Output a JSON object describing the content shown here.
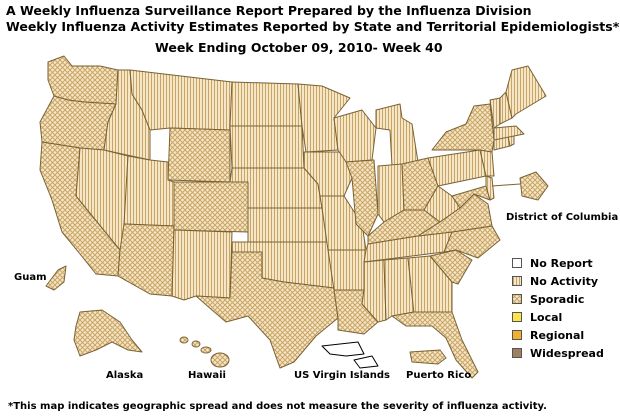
{
  "header": {
    "line1": "A Weekly Influenza Surveillance Report Prepared by the Influenza Division",
    "line2": "Weekly Influenza Activity Estimates Reported by State and Territorial Epidemiologists*",
    "week": "Week Ending October 09, 2010- Week 40"
  },
  "territories": {
    "dc": "District of Columbia",
    "guam": "Guam",
    "alaska": "Alaska",
    "hawaii": "Hawaii",
    "usvi": "US Virgin Islands",
    "pr": "Puerto Rico"
  },
  "legend": {
    "no_report": "No Report",
    "no_activity": "No Activity",
    "sporadic": "Sporadic",
    "local": "Local",
    "regional": "Regional",
    "widespread": "Widespread"
  },
  "colors": {
    "fill_base": "#f5e6c8",
    "hatch_line": "#c9a565",
    "border": "#7a6235",
    "local": "#ffe34d",
    "regional": "#f0b030",
    "widespread": "#a08060"
  },
  "footnote": "*This map indicates geographic spread and does not measure the severity of influenza activity."
}
